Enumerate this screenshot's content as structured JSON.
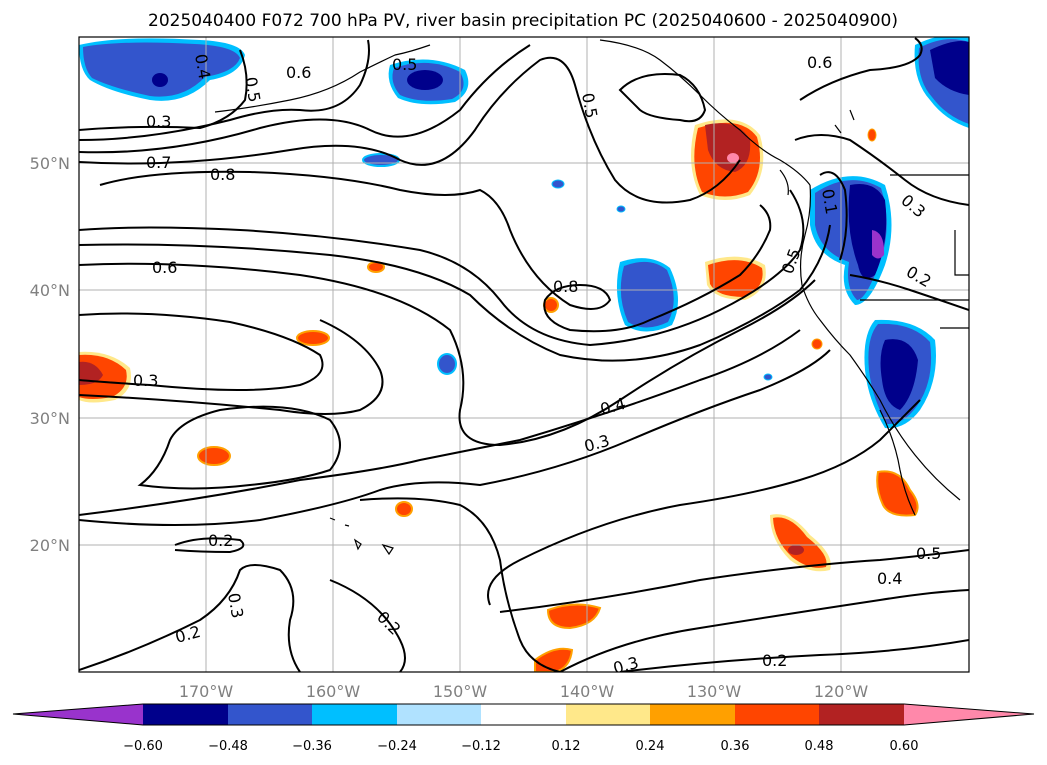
{
  "title": "2025040400 F072 700 hPa PV, river basin precipitation PC (2025040600 - 2025040900)",
  "lat_ticks": [
    "50°N",
    "40°N",
    "30°N",
    "20°N"
  ],
  "lon_ticks": [
    "170°W",
    "160°W",
    "150°W",
    "140°W",
    "130°W",
    "120°W"
  ],
  "contour_labels": [
    "0.4",
    "0.5",
    "0.6",
    "0.5",
    "0.3",
    "0.7",
    "0.8",
    "0.5",
    "0.6",
    "0.6",
    "0.1",
    "0.3",
    "0.5",
    "0.2",
    "0.8",
    "0.3",
    "0.4",
    "0.3",
    "0.2",
    "0.3",
    "0.2",
    "0.2",
    "0.5",
    "0.4",
    "0.2",
    "0.3"
  ],
  "colorbar": {
    "ticks": [
      "−0.60",
      "−0.48",
      "−0.36",
      "−0.24",
      "−0.12",
      "0.12",
      "0.24",
      "0.36",
      "0.48",
      "0.60"
    ],
    "colors": [
      "#9933cc",
      "#00008b",
      "#3355cc",
      "#00bfff",
      "#b0e2ff",
      "#ffffff",
      "#ffe88a",
      "#ffa000",
      "#ff4500",
      "#b22222",
      "#ff88aa"
    ]
  },
  "colors": {
    "neg_dark": "#00008b",
    "neg_mid": "#3355cc",
    "neg_light": "#00bfff",
    "pos_light": "#ffa000",
    "pos_mid": "#ff4500",
    "pos_dark": "#b22222",
    "pos_max": "#ff88aa",
    "neg_min": "#9933cc"
  }
}
